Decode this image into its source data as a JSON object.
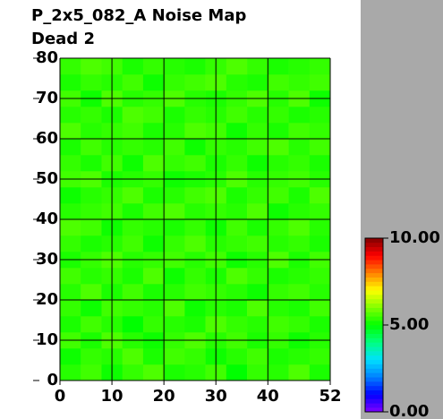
{
  "chart_data": {
    "type": "heatmap",
    "title": "P_2x5_082_A Noise Map",
    "subtitle": "Dead 2",
    "xlim": [
      0,
      52
    ],
    "xticks": [
      0,
      10,
      20,
      30,
      40,
      52
    ],
    "ylim": [
      0,
      80
    ],
    "yticks": [
      0,
      10,
      20,
      30,
      40,
      50,
      60,
      70,
      80
    ],
    "grid": true,
    "zlim": [
      0,
      10
    ],
    "zticks": [
      {
        "value": 0,
        "label": "0.00"
      },
      {
        "value": 5,
        "label": "5.00"
      },
      {
        "value": 10,
        "label": "10.00"
      }
    ],
    "colorscale": [
      "#8000ff",
      "#0000ff",
      "#0080ff",
      "#00e0ff",
      "#00ff80",
      "#00ff00",
      "#80ff00",
      "#ffff00",
      "#ff8000",
      "#ff0000",
      "#800000"
    ],
    "z": [
      [
        5.3,
        5.5,
        5.1,
        5.4,
        5.6,
        5.2,
        5.3,
        5.5,
        5.0,
        5.4,
        5.3,
        5.6,
        5.2
      ],
      [
        5.1,
        5.4,
        5.3,
        5.6,
        5.2,
        5.5,
        5.4,
        5.1,
        5.3,
        5.5,
        5.2,
        5.3,
        5.4
      ],
      [
        5.5,
        5.2,
        5.6,
        5.3,
        5.1,
        5.4,
        5.6,
        5.3,
        5.5,
        5.2,
        5.4,
        5.1,
        5.3
      ],
      [
        5.2,
        5.5,
        5.3,
        5.0,
        5.4,
        5.3,
        5.2,
        5.6,
        5.4,
        5.3,
        5.5,
        5.4,
        5.2
      ],
      [
        5.4,
        5.1,
        5.5,
        5.4,
        5.3,
        5.6,
        5.1,
        5.3,
        5.2,
        5.6,
        5.3,
        5.2,
        5.5
      ],
      [
        5.3,
        5.6,
        5.2,
        5.5,
        5.2,
        5.3,
        5.5,
        5.4,
        5.3,
        5.1,
        5.4,
        5.5,
        5.3
      ],
      [
        5.5,
        5.3,
        5.4,
        5.2,
        5.6,
        5.1,
        5.4,
        5.2,
        5.6,
        5.4,
        5.2,
        5.3,
        5.4
      ],
      [
        5.2,
        5.4,
        5.6,
        5.3,
        5.4,
        5.5,
        5.3,
        5.5,
        5.1,
        5.3,
        5.6,
        5.2,
        5.5
      ],
      [
        5.4,
        5.2,
        5.3,
        5.5,
        5.1,
        5.4,
        5.6,
        5.3,
        5.4,
        5.5,
        5.3,
        5.4,
        5.2
      ],
      [
        5.6,
        5.5,
        5.1,
        5.4,
        5.3,
        5.2,
        5.4,
        5.1,
        5.5,
        5.2,
        5.4,
        5.6,
        5.3
      ],
      [
        5.3,
        5.4,
        5.5,
        5.2,
        5.5,
        5.6,
        5.3,
        5.4,
        5.3,
        5.6,
        5.1,
        5.3,
        5.4
      ],
      [
        5.1,
        5.3,
        5.4,
        5.6,
        5.2,
        5.3,
        5.5,
        5.6,
        5.2,
        5.4,
        5.5,
        5.2,
        5.6
      ],
      [
        5.5,
        5.6,
        5.2,
        5.3,
        5.4,
        5.1,
        5.2,
        5.3,
        5.6,
        5.3,
        5.4,
        5.5,
        5.3
      ],
      [
        5.4,
        5.2,
        5.5,
        5.1,
        5.6,
        5.4,
        5.5,
        5.2,
        5.4,
        5.1,
        5.3,
        5.4,
        5.2
      ],
      [
        5.2,
        5.5,
        5.3,
        5.4,
        5.3,
        5.5,
        5.1,
        5.4,
        5.3,
        5.5,
        5.6,
        5.3,
        5.5
      ],
      [
        5.6,
        5.3,
        5.4,
        5.5,
        5.2,
        5.3,
        5.6,
        5.5,
        5.1,
        5.4,
        5.2,
        5.5,
        5.4
      ],
      [
        5.3,
        5.4,
        5.2,
        5.6,
        5.5,
        5.2,
        5.4,
        5.3,
        5.5,
        5.3,
        5.4,
        5.2,
        5.3
      ],
      [
        5.5,
        5.1,
        5.6,
        5.3,
        5.4,
        5.6,
        5.3,
        5.2,
        5.4,
        5.6,
        5.3,
        5.6,
        5.1
      ],
      [
        5.2,
        5.4,
        5.3,
        5.5,
        5.1,
        5.4,
        5.5,
        5.6,
        5.3,
        5.2,
        5.5,
        5.4,
        5.5
      ],
      [
        5.4,
        5.6,
        5.5,
        5.2,
        5.4,
        5.3,
        5.2,
        5.4,
        5.6,
        5.4,
        5.2,
        5.3,
        5.4
      ]
    ]
  }
}
